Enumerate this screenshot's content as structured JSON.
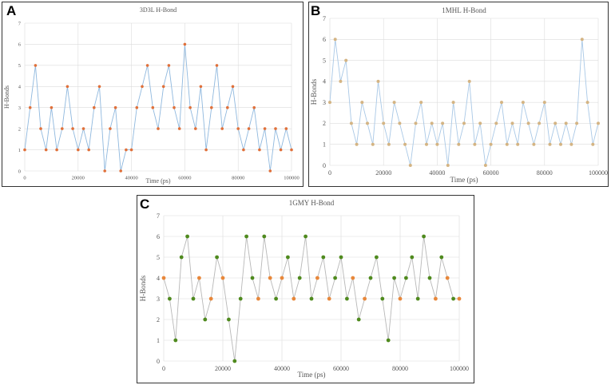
{
  "chart_data": [
    {
      "panel_label": "A",
      "type": "line",
      "title": "3D3L H-Bond",
      "xlabel": "Time (ps)",
      "ylabel": "H-Bonds",
      "xlim": [
        0,
        100000
      ],
      "ylim": [
        0,
        7
      ],
      "xticks": [
        0,
        20000,
        40000,
        60000,
        80000,
        100000
      ],
      "yticks": [
        0,
        1,
        2,
        3,
        4,
        5,
        6,
        7
      ],
      "grid": true,
      "line_color": "#8fb8de",
      "marker_color": "#e0703a",
      "series": [
        {
          "name": "H-Bonds",
          "x": [
            0,
            2000,
            4000,
            6000,
            8000,
            10000,
            12000,
            14000,
            16000,
            18000,
            20000,
            22000,
            24000,
            26000,
            28000,
            30000,
            32000,
            34000,
            36000,
            38000,
            40000,
            42000,
            44000,
            46000,
            48000,
            50000,
            52000,
            54000,
            56000,
            58000,
            60000,
            62000,
            64000,
            66000,
            68000,
            70000,
            72000,
            74000,
            76000,
            78000,
            80000,
            82000,
            84000,
            86000,
            88000,
            90000,
            92000,
            94000,
            96000,
            98000,
            100000
          ],
          "y": [
            1,
            3,
            5,
            2,
            1,
            3,
            1,
            2,
            4,
            2,
            1,
            2,
            1,
            3,
            4,
            0,
            2,
            3,
            0,
            1,
            1,
            3,
            4,
            5,
            3,
            2,
            4,
            5,
            3,
            2,
            6,
            3,
            2,
            4,
            1,
            3,
            5,
            2,
            3,
            4,
            2,
            1,
            2,
            3,
            1,
            2,
            0,
            2,
            1,
            2,
            1
          ]
        }
      ]
    },
    {
      "panel_label": "B",
      "type": "line",
      "title": "1MHL H-Bond",
      "xlabel": "Time (ps)",
      "ylabel": "H-Bonds",
      "xlim": [
        0,
        100000
      ],
      "ylim": [
        0,
        7
      ],
      "xticks": [
        0,
        20000,
        40000,
        60000,
        80000,
        100000
      ],
      "yticks": [
        0,
        1,
        2,
        3,
        4,
        5,
        6,
        7
      ],
      "grid": true,
      "line_color": "#a9c8e6",
      "marker_color": "#d4b483",
      "series": [
        {
          "name": "H-Bonds",
          "x": [
            0,
            2000,
            4000,
            6000,
            8000,
            10000,
            12000,
            14000,
            16000,
            18000,
            20000,
            22000,
            24000,
            26000,
            28000,
            30000,
            32000,
            34000,
            36000,
            38000,
            40000,
            42000,
            44000,
            46000,
            48000,
            50000,
            52000,
            54000,
            56000,
            58000,
            60000,
            62000,
            64000,
            66000,
            68000,
            70000,
            72000,
            74000,
            76000,
            78000,
            80000,
            82000,
            84000,
            86000,
            88000,
            90000,
            92000,
            94000,
            96000,
            98000,
            100000
          ],
          "y": [
            3,
            6,
            4,
            5,
            2,
            1,
            3,
            2,
            1,
            4,
            2,
            1,
            3,
            2,
            1,
            0,
            2,
            3,
            1,
            2,
            1,
            2,
            0,
            3,
            1,
            2,
            4,
            1,
            2,
            0,
            1,
            2,
            3,
            1,
            2,
            1,
            3,
            2,
            1,
            2,
            3,
            1,
            2,
            1,
            2,
            1,
            2,
            6,
            3,
            1,
            2
          ]
        }
      ]
    },
    {
      "panel_label": "C",
      "type": "line",
      "title": "1GMY H-Bond",
      "xlabel": "Time (ps)",
      "ylabel": "H-Bonds",
      "xlim": [
        0,
        100000
      ],
      "ylim": [
        0,
        7
      ],
      "xticks": [
        0,
        20000,
        40000,
        60000,
        80000,
        100000
      ],
      "yticks": [
        0,
        1,
        2,
        3,
        4,
        5,
        6,
        7
      ],
      "grid": true,
      "line_color": "#b8b8b8",
      "marker_color": "#4f8a1e",
      "marker_color_alt": "#e8873a",
      "series": [
        {
          "name": "H-Bonds",
          "x": [
            0,
            2000,
            4000,
            6000,
            8000,
            10000,
            12000,
            14000,
            16000,
            18000,
            20000,
            22000,
            24000,
            26000,
            28000,
            30000,
            32000,
            34000,
            36000,
            38000,
            40000,
            42000,
            44000,
            46000,
            48000,
            50000,
            52000,
            54000,
            56000,
            58000,
            60000,
            62000,
            64000,
            66000,
            68000,
            70000,
            72000,
            74000,
            76000,
            78000,
            80000,
            82000,
            84000,
            86000,
            88000,
            90000,
            92000,
            94000,
            96000,
            98000,
            100000
          ],
          "y": [
            4,
            3,
            1,
            5,
            6,
            3,
            4,
            2,
            3,
            5,
            4,
            2,
            0,
            3,
            6,
            4,
            3,
            6,
            4,
            3,
            4,
            5,
            3,
            4,
            6,
            3,
            4,
            5,
            3,
            4,
            5,
            3,
            4,
            2,
            3,
            4,
            5,
            3,
            1,
            4,
            3,
            4,
            5,
            3,
            6,
            4,
            3,
            5,
            4,
            3,
            3
          ]
        }
      ]
    }
  ]
}
